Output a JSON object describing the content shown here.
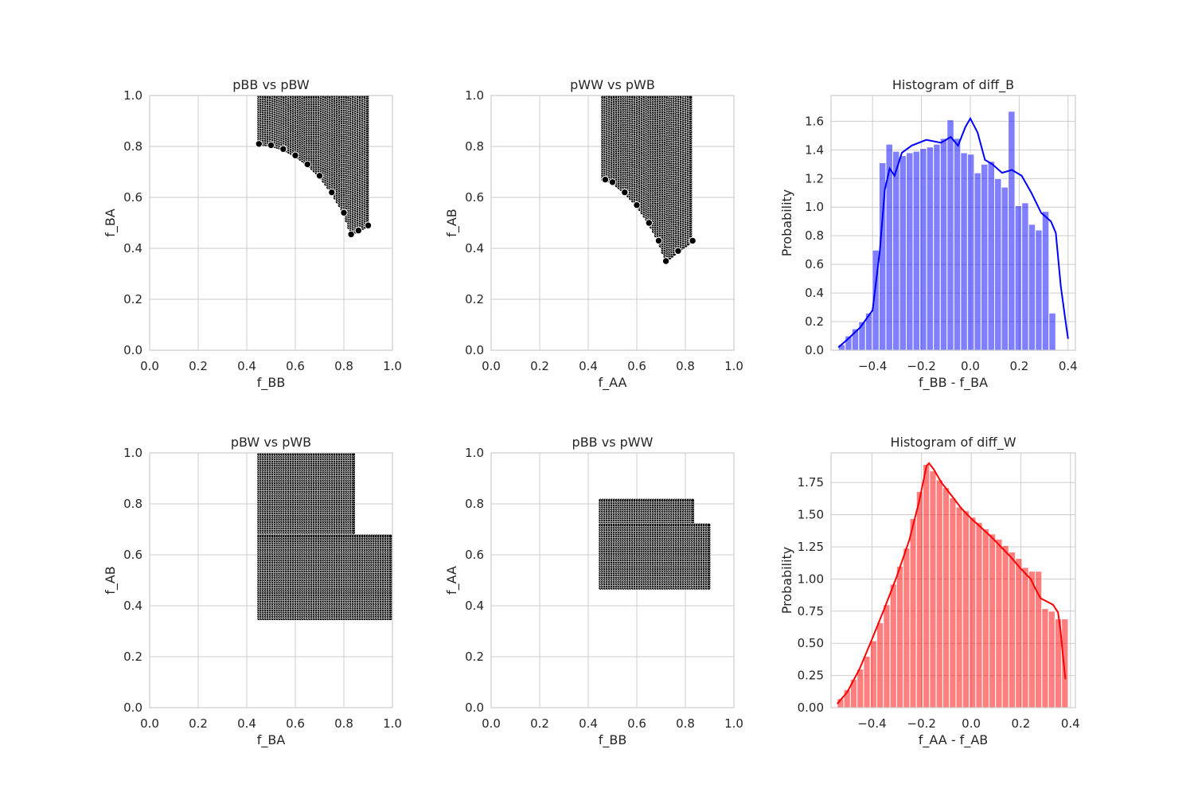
{
  "chart_data": [
    {
      "type": "scatter",
      "title": "pBB vs pBW",
      "xlabel": "f_BB",
      "ylabel": "f_BA",
      "xlim": [
        0,
        1
      ],
      "ylim": [
        0,
        1
      ],
      "grid": true,
      "xticks": [
        "0.0",
        "0.2",
        "0.4",
        "0.6",
        "0.8",
        "1.0"
      ],
      "yticks": [
        "0.0",
        "0.2",
        "0.4",
        "0.6",
        "0.8",
        "1.0"
      ],
      "marker_color": "#000000",
      "region": {
        "description_points": [
          [
            0.45,
            1.0
          ],
          [
            0.9,
            1.0
          ],
          [
            0.9,
            0.49
          ],
          [
            0.83,
            0.45
          ],
          [
            0.76,
            0.55
          ],
          [
            0.6,
            0.75
          ],
          [
            0.45,
            0.81
          ]
        ],
        "x": [
          0.45,
          0.9
        ],
        "y": [
          0.45,
          1.0
        ],
        "lower_boundary": [
          [
            0.45,
            0.81
          ],
          [
            0.5,
            0.805
          ],
          [
            0.55,
            0.79
          ],
          [
            0.6,
            0.765
          ],
          [
            0.65,
            0.73
          ],
          [
            0.7,
            0.685
          ],
          [
            0.75,
            0.62
          ],
          [
            0.8,
            0.54
          ],
          [
            0.83,
            0.455
          ],
          [
            0.86,
            0.47
          ],
          [
            0.9,
            0.49
          ]
        ]
      }
    },
    {
      "type": "scatter",
      "title": "pWW vs pWB",
      "xlabel": "f_AA",
      "ylabel": "f_AB",
      "xlim": [
        0,
        1
      ],
      "ylim": [
        0,
        1
      ],
      "grid": true,
      "xticks": [
        "0.0",
        "0.2",
        "0.4",
        "0.6",
        "0.8",
        "1.0"
      ],
      "yticks": [
        "0.0",
        "0.2",
        "0.4",
        "0.6",
        "0.8",
        "1.0"
      ],
      "marker_color": "#000000",
      "region": {
        "x": [
          0.46,
          0.83
        ],
        "y": [
          0.35,
          1.0
        ],
        "lower_boundary": [
          [
            0.47,
            0.67
          ],
          [
            0.5,
            0.66
          ],
          [
            0.55,
            0.62
          ],
          [
            0.6,
            0.57
          ],
          [
            0.65,
            0.5
          ],
          [
            0.69,
            0.43
          ],
          [
            0.72,
            0.35
          ],
          [
            0.77,
            0.39
          ],
          [
            0.83,
            0.43
          ]
        ]
      }
    },
    {
      "type": "bar",
      "title": "Histogram of diff_B",
      "xlabel": "f_BB - f_BA",
      "ylabel": "Probability",
      "xlim": [
        -0.57,
        0.43
      ],
      "ylim": [
        0,
        1.78
      ],
      "grid": true,
      "xticks": [
        "−0.4",
        "−0.2",
        "0.0",
        "0.2",
        "0.4"
      ],
      "yticks": [
        "0.0",
        "0.2",
        "0.4",
        "0.6",
        "0.8",
        "1.0",
        "1.2",
        "1.4",
        "1.6"
      ],
      "color": "#0000ff",
      "bin_start": -0.54,
      "bin_width": 0.0278,
      "values": [
        0.04,
        0.1,
        0.15,
        0.2,
        0.26,
        0.7,
        1.31,
        1.44,
        1.39,
        1.36,
        1.38,
        1.39,
        1.41,
        1.42,
        1.44,
        1.48,
        1.61,
        1.48,
        1.38,
        1.37,
        1.24,
        1.3,
        1.32,
        1.2,
        1.14,
        1.67,
        1.01,
        1.03,
        0.88,
        0.84,
        0.97,
        0.26
      ],
      "kde": [
        [
          -0.54,
          0.02
        ],
        [
          -0.5,
          0.08
        ],
        [
          -0.45,
          0.16
        ],
        [
          -0.4,
          0.28
        ],
        [
          -0.37,
          0.7
        ],
        [
          -0.35,
          1.12
        ],
        [
          -0.33,
          1.27
        ],
        [
          -0.31,
          1.22
        ],
        [
          -0.28,
          1.38
        ],
        [
          -0.24,
          1.43
        ],
        [
          -0.18,
          1.47
        ],
        [
          -0.12,
          1.45
        ],
        [
          -0.08,
          1.49
        ],
        [
          -0.05,
          1.43
        ],
        [
          -0.02,
          1.56
        ],
        [
          0.0,
          1.62
        ],
        [
          0.03,
          1.52
        ],
        [
          0.06,
          1.33
        ],
        [
          0.09,
          1.3
        ],
        [
          0.13,
          1.24
        ],
        [
          0.17,
          1.26
        ],
        [
          0.21,
          1.22
        ],
        [
          0.25,
          1.1
        ],
        [
          0.29,
          0.96
        ],
        [
          0.31,
          0.93
        ],
        [
          0.33,
          0.9
        ],
        [
          0.35,
          0.82
        ],
        [
          0.37,
          0.45
        ],
        [
          0.39,
          0.2
        ],
        [
          0.4,
          0.08
        ]
      ]
    },
    {
      "type": "scatter",
      "title": "pBW vs pWB",
      "xlabel": "f_BA",
      "ylabel": "f_AB",
      "xlim": [
        0,
        1
      ],
      "ylim": [
        0,
        1
      ],
      "grid": true,
      "xticks": [
        "0.0",
        "0.2",
        "0.4",
        "0.6",
        "0.8",
        "1.0"
      ],
      "yticks": [
        "0.0",
        "0.2",
        "0.4",
        "0.6",
        "0.8",
        "1.0"
      ],
      "marker_color": "#000000",
      "region": {
        "blocks": [
          {
            "x": [
              0.45,
              0.84
            ],
            "y": [
              0.68,
              1.0
            ]
          },
          {
            "x": [
              0.45,
              1.0
            ],
            "y": [
              0.35,
              0.68
            ]
          }
        ]
      }
    },
    {
      "type": "scatter",
      "title": "pBB vs pWW",
      "xlabel": "f_BB",
      "ylabel": "f_AA",
      "xlim": [
        0,
        1
      ],
      "ylim": [
        0,
        1
      ],
      "grid": true,
      "xticks": [
        "0.0",
        "0.2",
        "0.4",
        "0.6",
        "0.8",
        "1.0"
      ],
      "yticks": [
        "0.0",
        "0.2",
        "0.4",
        "0.6",
        "0.8",
        "1.0"
      ],
      "marker_color": "#000000",
      "region": {
        "blocks": [
          {
            "x": [
              0.45,
              0.83
            ],
            "y": [
              0.72,
              0.82
            ]
          },
          {
            "x": [
              0.45,
              0.9
            ],
            "y": [
              0.47,
              0.72
            ]
          }
        ]
      }
    },
    {
      "type": "bar",
      "title": "Histogram of diff_W",
      "xlabel": "f_AA - f_AB",
      "ylabel": "Probability",
      "xlim": [
        -0.565,
        0.42
      ],
      "ylim": [
        0,
        1.98
      ],
      "grid": true,
      "xticks": [
        "−0.4",
        "−0.2",
        "0.0",
        "0.2",
        "0.4"
      ],
      "yticks": [
        "0.00",
        "0.25",
        "0.50",
        "0.75",
        "1.00",
        "1.25",
        "1.50",
        "1.75"
      ],
      "color": "#ff0000",
      "bin_start": -0.54,
      "bin_width": 0.0266,
      "values": [
        0.07,
        0.14,
        0.22,
        0.3,
        0.4,
        0.52,
        0.66,
        0.8,
        0.96,
        1.1,
        1.24,
        1.47,
        1.68,
        1.89,
        1.84,
        1.77,
        1.71,
        1.63,
        1.56,
        1.53,
        1.48,
        1.44,
        1.39,
        1.35,
        1.31,
        1.26,
        1.21,
        1.16,
        1.09,
        1.06,
        1.06,
        0.77,
        0.75,
        0.69,
        0.69
      ],
      "kde": [
        [
          -0.54,
          0.03
        ],
        [
          -0.5,
          0.12
        ],
        [
          -0.45,
          0.3
        ],
        [
          -0.4,
          0.53
        ],
        [
          -0.35,
          0.77
        ],
        [
          -0.3,
          1.02
        ],
        [
          -0.25,
          1.3
        ],
        [
          -0.21,
          1.6
        ],
        [
          -0.18,
          1.88
        ],
        [
          -0.17,
          1.9
        ],
        [
          -0.15,
          1.85
        ],
        [
          -0.12,
          1.75
        ],
        [
          -0.08,
          1.65
        ],
        [
          -0.04,
          1.55
        ],
        [
          0.0,
          1.47
        ],
        [
          0.04,
          1.4
        ],
        [
          0.08,
          1.33
        ],
        [
          0.12,
          1.25
        ],
        [
          0.16,
          1.17
        ],
        [
          0.2,
          1.08
        ],
        [
          0.24,
          1.0
        ],
        [
          0.26,
          0.92
        ],
        [
          0.28,
          0.85
        ],
        [
          0.31,
          0.82
        ],
        [
          0.33,
          0.8
        ],
        [
          0.35,
          0.74
        ],
        [
          0.36,
          0.6
        ],
        [
          0.37,
          0.4
        ],
        [
          0.38,
          0.22
        ]
      ]
    }
  ]
}
